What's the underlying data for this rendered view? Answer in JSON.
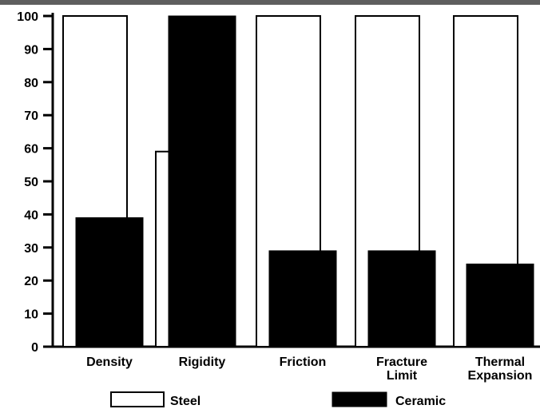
{
  "chart_data": {
    "type": "bar",
    "categories": [
      "Density",
      "Rigidity",
      "Friction",
      "Fracture Limit",
      "Thermal Expansion"
    ],
    "category_lines": [
      [
        "Density"
      ],
      [
        "Rigidity"
      ],
      [
        "Friction"
      ],
      [
        "Fracture",
        "Limit"
      ],
      [
        "Thermal",
        "Expansion"
      ]
    ],
    "series": [
      {
        "name": "Steel",
        "values": [
          100,
          59,
          100,
          100,
          100
        ],
        "color": "#ffffff",
        "stroke": "#000000"
      },
      {
        "name": "Ceramic",
        "values": [
          39,
          100,
          29,
          29,
          25
        ],
        "color": "#000000",
        "stroke": "#000000"
      }
    ],
    "ylim": [
      0,
      100
    ],
    "yticks": [
      "0",
      "10",
      "20",
      "30",
      "40",
      "50",
      "60",
      "70",
      "80",
      "90",
      "100"
    ],
    "grid": false,
    "legend_position": "bottom"
  }
}
